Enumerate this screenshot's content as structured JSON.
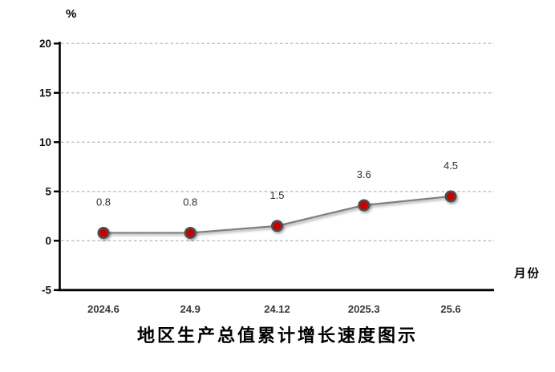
{
  "chart_data": {
    "type": "line",
    "title": "地区生产总值累计增长速度图示",
    "ylabel": "%",
    "xlabel": "月份",
    "categories": [
      "2024.6",
      "24.9",
      "24.12",
      "2025.3",
      "25.6"
    ],
    "series": [
      {
        "name": "地区生产总值累计增长速度",
        "values": [
          0.8,
          0.8,
          1.5,
          3.6,
          4.5
        ]
      }
    ],
    "data_labels": [
      "0.8",
      "0.8",
      "1.5",
      "3.6",
      "4.5"
    ],
    "ylim": [
      -5,
      20
    ],
    "yticks": [
      20,
      15,
      10,
      5,
      0,
      -5
    ],
    "gridline_values": [
      20,
      15,
      10,
      5,
      0
    ],
    "grid": "dashed-horizontal",
    "legend": "none",
    "colors": {
      "marker_fill": "#c80404",
      "marker_ring": "#4d4d4d",
      "line": "#7f7f7f",
      "gridline": "#bdbdbd",
      "axis": "#000000"
    }
  }
}
